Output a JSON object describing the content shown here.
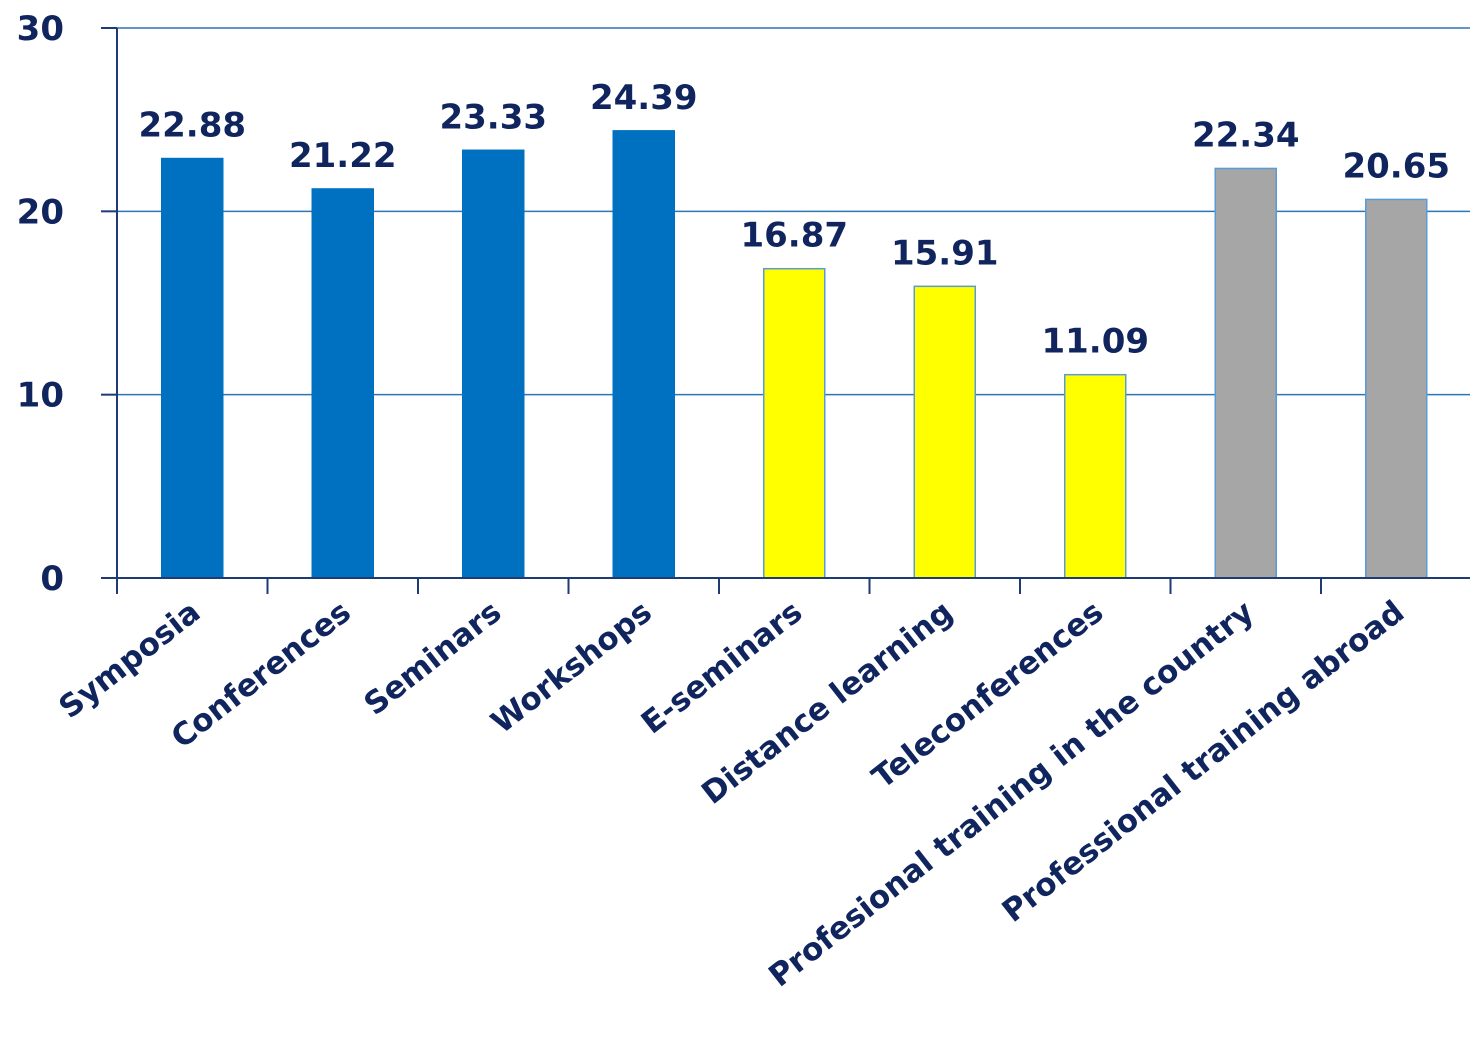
{
  "chart_data": {
    "type": "bar",
    "categories": [
      "Symposia",
      "Conferences",
      "Seminars",
      "Workshops",
      "E-seminars",
      "Distance learning",
      "Teleconferences",
      "Profesional training in the country",
      "Professional training abroad"
    ],
    "values": [
      22.88,
      21.22,
      23.33,
      24.39,
      16.87,
      15.91,
      11.09,
      22.34,
      20.65
    ],
    "data_labels": [
      "22.88",
      "21.22",
      "23.33",
      "24.39",
      "16.87",
      "15.91",
      "11.09",
      "22.34",
      "20.65"
    ],
    "bar_colors": [
      "#0070c0",
      "#0070c0",
      "#0070c0",
      "#0070c0",
      "#ffff00",
      "#ffff00",
      "#ffff00",
      "#a6a6a6",
      "#a6a6a6"
    ],
    "bar_edge_colors": [
      "#0070c0",
      "#0070c0",
      "#0070c0",
      "#0070c0",
      "#5b9bd5",
      "#5b9bd5",
      "#5b9bd5",
      "#5b9bd5",
      "#5b9bd5"
    ],
    "ylim": [
      0,
      30
    ],
    "yticks": [
      0,
      10,
      20,
      30
    ],
    "ytick_labels": [
      "0",
      "10",
      "20",
      "30"
    ],
    "grid": true,
    "grid_color": "#2e75b6",
    "axis_color": "#1f3b73",
    "text_color": "#10255e",
    "title": "",
    "xlabel": "",
    "ylabel": ""
  }
}
